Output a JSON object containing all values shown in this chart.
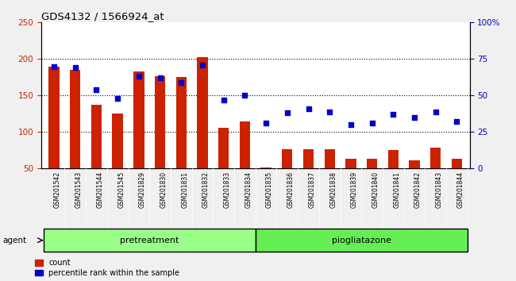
{
  "title": "GDS4132 / 1566924_at",
  "samples": [
    "GSM201542",
    "GSM201543",
    "GSM201544",
    "GSM201545",
    "GSM201829",
    "GSM201830",
    "GSM201831",
    "GSM201832",
    "GSM201833",
    "GSM201834",
    "GSM201835",
    "GSM201836",
    "GSM201837",
    "GSM201838",
    "GSM201839",
    "GSM201840",
    "GSM201841",
    "GSM201842",
    "GSM201843",
    "GSM201844"
  ],
  "counts": [
    190,
    185,
    137,
    125,
    183,
    177,
    175,
    202,
    106,
    114,
    52,
    76,
    76,
    76,
    63,
    63,
    75,
    61,
    79,
    64
  ],
  "percentile": [
    70,
    69,
    54,
    48,
    63,
    62,
    59,
    71,
    47,
    50,
    31,
    38,
    41,
    39,
    30,
    31,
    37,
    35,
    39,
    32
  ],
  "groups": [
    {
      "label": "pretreatment",
      "start": 0,
      "end": 9,
      "color": "#99ff88"
    },
    {
      "label": "piogliatazone",
      "start": 10,
      "end": 19,
      "color": "#66ee55"
    }
  ],
  "bar_color": "#cc2200",
  "dot_color": "#0000cc",
  "left_ylim": [
    50,
    250
  ],
  "right_ylim": [
    0,
    100
  ],
  "left_yticks": [
    50,
    100,
    150,
    200,
    250
  ],
  "right_yticks": [
    0,
    25,
    50,
    75,
    100
  ],
  "right_yticklabels": [
    "0",
    "25",
    "50",
    "75",
    "100%"
  ],
  "grid_values": [
    100,
    150,
    200
  ],
  "ylabel_left_color": "#cc2200",
  "ylabel_right_color": "#0000cc",
  "legend_count_label": "count",
  "legend_pct_label": "percentile rank within the sample",
  "agent_label": "agent",
  "background_color": "#f0f0f0",
  "plot_bg_color": "#ffffff",
  "sample_bg_color": "#c8c8c8",
  "bar_width": 0.5
}
